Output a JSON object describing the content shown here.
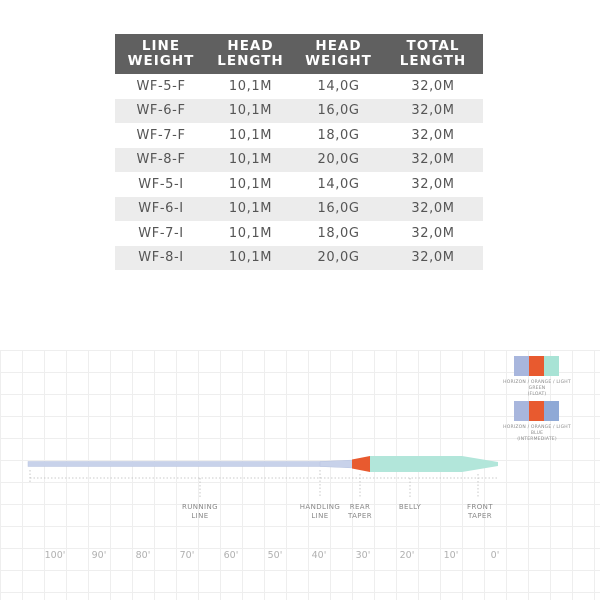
{
  "table": {
    "headers": [
      [
        "LINE",
        "WEIGHT"
      ],
      [
        "HEAD",
        "LENGTH"
      ],
      [
        "HEAD",
        "WEIGHT"
      ],
      [
        "TOTAL",
        "LENGTH"
      ]
    ],
    "rows": [
      [
        "WF-5-F",
        "10,1M",
        "14,0G",
        "32,0M"
      ],
      [
        "WF-6-F",
        "10,1M",
        "16,0G",
        "32,0M"
      ],
      [
        "WF-7-F",
        "10,1M",
        "18,0G",
        "32,0M"
      ],
      [
        "WF-8-F",
        "10,1M",
        "20,0G",
        "32,0M"
      ],
      [
        "WF-5-I",
        "10,1M",
        "14,0G",
        "32,0M"
      ],
      [
        "WF-6-I",
        "10,1M",
        "16,0G",
        "32,0M"
      ],
      [
        "WF-7-I",
        "10,1M",
        "18,0G",
        "32,0M"
      ],
      [
        "WF-8-I",
        "10,1M",
        "20,0G",
        "32,0M"
      ]
    ]
  },
  "profile": {
    "sections": {
      "running_line": [
        "RUNNING",
        "LINE"
      ],
      "handling_line": [
        "HANDLING",
        "LINE"
      ],
      "rear_taper": [
        "REAR",
        "TAPER"
      ],
      "belly": [
        "BELLY"
      ],
      "front_taper": [
        "FRONT",
        "TAPER"
      ]
    },
    "scale": [
      "100'",
      "90'",
      "80'",
      "70'",
      "60'",
      "50'",
      "40'",
      "30'",
      "20'",
      "10'",
      "0'"
    ]
  },
  "color_options": [
    {
      "swatches": [
        "#a8b6dd",
        "#e85a2f",
        "#a8e3d5"
      ],
      "caption": [
        "HORIZON / ORANGE / LIGHT GREEN",
        "(FLOAT)"
      ]
    },
    {
      "swatches": [
        "#a8b6dd",
        "#e85a2f",
        "#8fa9d6"
      ],
      "caption": [
        "HORIZON / ORANGE / LIGHT BLUE",
        "(INTERMEDIATE)"
      ]
    }
  ],
  "colors": {
    "header_bg": "#606060",
    "running_line": "#c8d2ea",
    "rear_taper": "#e85a2f",
    "head": "#b2e6da"
  }
}
